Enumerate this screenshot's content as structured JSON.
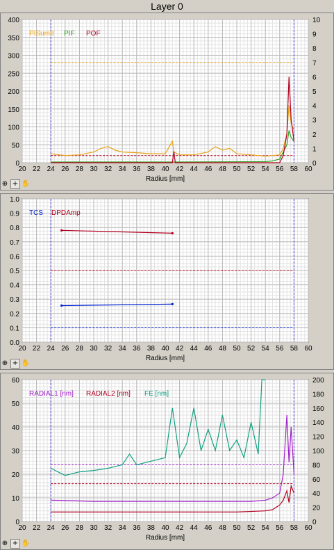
{
  "window": {
    "title": "Layer 0"
  },
  "toolbar_icons": [
    "zoom-icon",
    "crosshair-icon",
    "hand-icon"
  ],
  "chart_data": [
    {
      "type": "line",
      "xlabel": "Radius [mm]",
      "xlim": [
        20,
        60
      ],
      "x_ticks": [
        20,
        22,
        24,
        26,
        28,
        30,
        32,
        34,
        36,
        38,
        40,
        42,
        44,
        46,
        48,
        50,
        52,
        54,
        56,
        58,
        60
      ],
      "ylim_left": [
        0,
        400
      ],
      "y_ticks_left": [
        0,
        50,
        100,
        150,
        200,
        250,
        300,
        350,
        400
      ],
      "ylim_right": [
        0,
        10
      ],
      "y_ticks_right": [
        0,
        1,
        2,
        3,
        4,
        5,
        6,
        7,
        8,
        9,
        10
      ],
      "grid": true,
      "legend_position": "top-left",
      "vlines": [
        24,
        58
      ],
      "series": [
        {
          "name": "PISum8",
          "color": "#e8a317",
          "axis": "left",
          "x": [
            24,
            26,
            28,
            30,
            31,
            32,
            33,
            34,
            36,
            38,
            40,
            41,
            41.2,
            42,
            44,
            46,
            47,
            48,
            49,
            50,
            52,
            54,
            55,
            56,
            56.5,
            57,
            57.3,
            57.6,
            58
          ],
          "y": [
            25,
            20,
            22,
            30,
            40,
            45,
            35,
            30,
            28,
            25,
            25,
            60,
            30,
            22,
            22,
            30,
            45,
            35,
            40,
            25,
            22,
            18,
            20,
            22,
            40,
            80,
            160,
            110,
            90
          ]
        },
        {
          "name": "PIF",
          "color": "#30a020",
          "axis": "left",
          "x": [
            24,
            40,
            54,
            55,
            56,
            56.5,
            57,
            57.3,
            57.6,
            58
          ],
          "y": [
            2,
            2,
            3,
            5,
            10,
            30,
            50,
            90,
            70,
            60
          ]
        },
        {
          "name": "POF",
          "color": "#b00020",
          "axis": "right",
          "x": [
            24,
            41,
            41.2,
            41.4,
            56,
            56.5,
            57,
            57.3,
            57.6,
            58
          ],
          "y": [
            0,
            0,
            0.8,
            0,
            0,
            0.5,
            2,
            6,
            3,
            1.5
          ]
        }
      ],
      "reference_lines": [
        {
          "series": "PISum8",
          "value": 280
        },
        {
          "series": "POF",
          "value": 0.5
        }
      ]
    },
    {
      "type": "line",
      "xlabel": "Radius [mm]",
      "xlim": [
        20,
        60
      ],
      "x_ticks": [
        20,
        22,
        24,
        26,
        28,
        30,
        32,
        34,
        36,
        38,
        40,
        42,
        44,
        46,
        48,
        50,
        52,
        54,
        56,
        58,
        60
      ],
      "ylim": [
        0,
        1.0
      ],
      "y_ticks": [
        "0.0",
        "0.1",
        "0.2",
        "0.3",
        "0.4",
        "0.5",
        "0.6",
        "0.7",
        "0.8",
        "0.9",
        "1.0"
      ],
      "grid": true,
      "legend_position": "top-left",
      "vlines": [
        24,
        58
      ],
      "series": [
        {
          "name": "TCS",
          "color": "#0020d0",
          "x": [
            25.5,
            41
          ],
          "y": [
            0.255,
            0.265
          ]
        },
        {
          "name": "DPDAmp",
          "color": "#b00020",
          "x": [
            25.5,
            41
          ],
          "y": [
            0.78,
            0.76
          ]
        }
      ],
      "reference_lines": [
        {
          "series": "TCS",
          "value": 0.1
        },
        {
          "series": "DPDAmp",
          "value": 0.5
        }
      ]
    },
    {
      "type": "line",
      "xlabel": "Radius [mm]",
      "xlim": [
        20,
        60
      ],
      "x_ticks": [
        20,
        22,
        24,
        26,
        28,
        30,
        32,
        34,
        36,
        38,
        40,
        42,
        44,
        46,
        48,
        50,
        52,
        54,
        56,
        58,
        60
      ],
      "ylim_left": [
        0,
        60
      ],
      "y_ticks_left": [
        0,
        10,
        20,
        30,
        40,
        50,
        60
      ],
      "ylim_right": [
        0,
        200
      ],
      "y_ticks_right": [
        0,
        20,
        40,
        60,
        80,
        100,
        120,
        140,
        160,
        180,
        200
      ],
      "grid": true,
      "legend_position": "top-left",
      "vlines": [
        24,
        58
      ],
      "series": [
        {
          "name": "RADIAL1 [nm]",
          "color": "#a020c8",
          "axis": "left",
          "x": [
            24,
            30,
            36,
            40,
            44,
            48,
            52,
            54,
            55,
            56,
            56.5,
            57,
            57.3,
            57.6,
            58
          ],
          "y": [
            9,
            8.5,
            8.5,
            8.5,
            8.5,
            8.5,
            8.5,
            9,
            10,
            12,
            20,
            45,
            25,
            40,
            20
          ]
        },
        {
          "name": "RADIAL2 [nm]",
          "color": "#b00020",
          "axis": "left",
          "x": [
            24,
            30,
            40,
            50,
            54,
            55,
            56,
            56.5,
            57,
            57.3,
            57.6,
            58
          ],
          "y": [
            4,
            4,
            4,
            4,
            4.5,
            5,
            7,
            9,
            13,
            8,
            15,
            12
          ]
        },
        {
          "name": "FE [nm]",
          "color": "#10a080",
          "axis": "right",
          "x": [
            24,
            26,
            28,
            30,
            32,
            34,
            35,
            36,
            38,
            40,
            41,
            42,
            43,
            44,
            45,
            46,
            47,
            48,
            49,
            50,
            51,
            52,
            53,
            53.5,
            54
          ],
          "y": [
            75,
            65,
            70,
            72,
            75,
            80,
            95,
            80,
            85,
            90,
            160,
            90,
            110,
            160,
            100,
            130,
            100,
            150,
            100,
            115,
            90,
            140,
            95,
            200,
            200
          ]
        }
      ],
      "reference_lines": [
        {
          "series": "RADIAL1 [nm]",
          "value": 24
        },
        {
          "series": "RADIAL2 [nm]",
          "value": 16
        }
      ]
    }
  ]
}
